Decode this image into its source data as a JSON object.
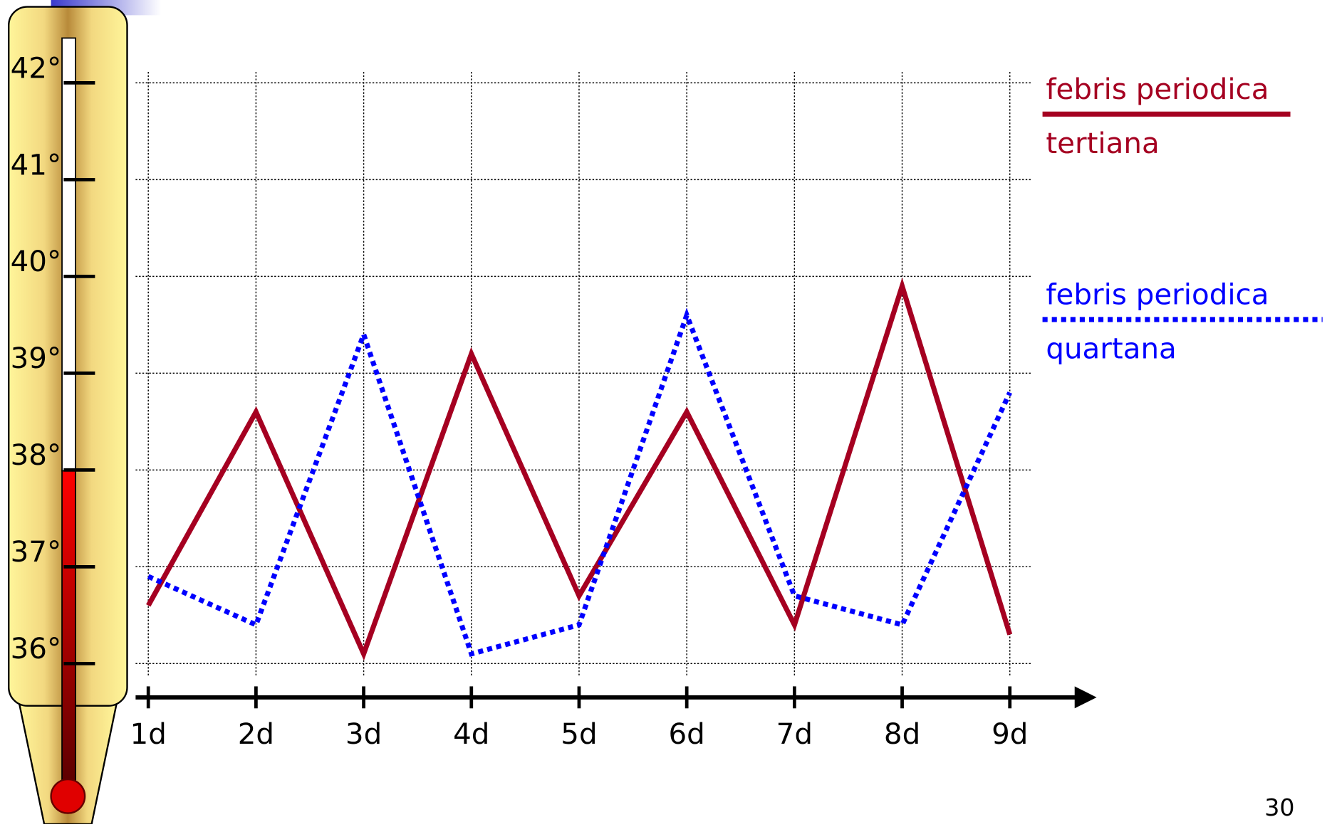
{
  "chart_data": {
    "type": "line",
    "categories": [
      "1d",
      "2d",
      "3d",
      "4d",
      "5d",
      "6d",
      "7d",
      "8d",
      "9d"
    ],
    "series": [
      {
        "name": [
          "febris periodica",
          "tertiana"
        ],
        "color": "#a50021",
        "style": "solid",
        "values": [
          36.6,
          38.6,
          36.1,
          39.2,
          36.7,
          38.6,
          36.4,
          39.9,
          36.3
        ]
      },
      {
        "name": [
          "febris periodica",
          "quartana"
        ],
        "color": "#0000ff",
        "style": "dotted",
        "values": [
          36.9,
          36.4,
          39.4,
          36.1,
          36.4,
          39.6,
          36.7,
          36.4,
          38.8
        ]
      }
    ],
    "ylim": [
      36,
      42
    ],
    "yticks": [
      {
        "value": 36,
        "label": "36°"
      },
      {
        "value": 37,
        "label": "37°"
      },
      {
        "value": 38,
        "label": "38°"
      },
      {
        "value": 39,
        "label": "39°"
      },
      {
        "value": 40,
        "label": "40°"
      },
      {
        "value": 41,
        "label": "41°"
      },
      {
        "value": 42,
        "label": "42°"
      }
    ],
    "grid": true,
    "legend": "right"
  },
  "page_number": "30"
}
